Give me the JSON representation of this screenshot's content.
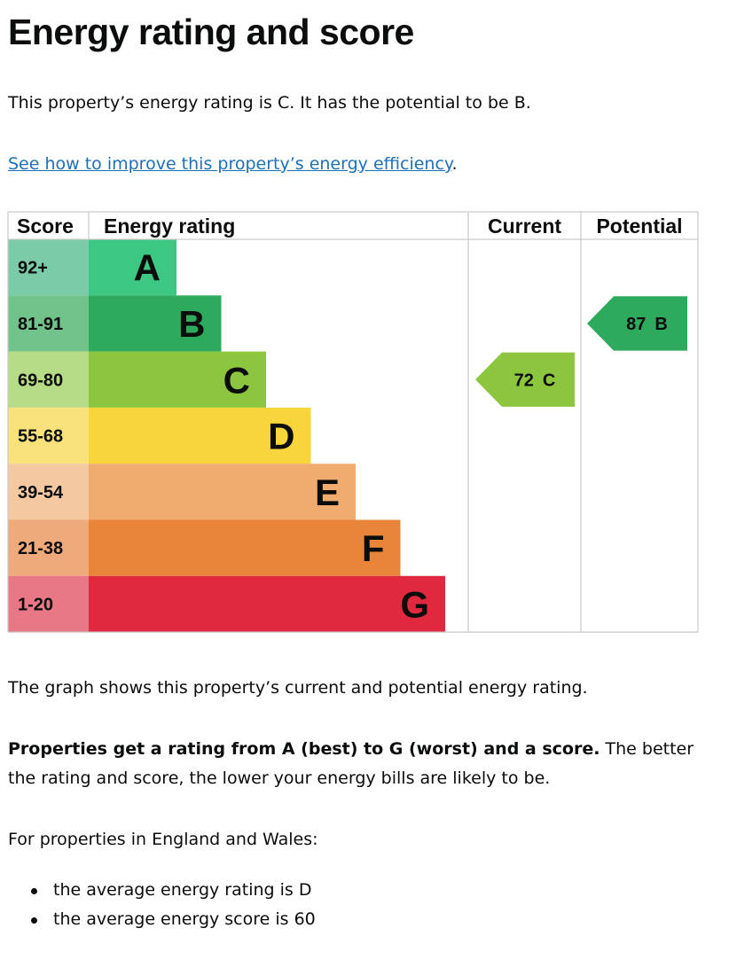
{
  "heading": "Energy rating and score",
  "intro": "This property’s energy rating is C. It has the potential to be B.",
  "link": "See how to improve this property’s energy efficiency",
  "link_end": ".",
  "table": {
    "headers": [
      "Score",
      "Energy rating",
      "Current",
      "Potential"
    ],
    "bands": [
      {
        "score": "92+",
        "letter": "A",
        "color": "#3cc882",
        "score_color": "#7bcaa8"
      },
      {
        "score": "81-91",
        "letter": "B",
        "color": "#2eaa5c",
        "score_color": "#72c28b"
      },
      {
        "score": "69-80",
        "letter": "C",
        "color": "#8cc63f",
        "score_color": "#b7dc87"
      },
      {
        "score": "55-68",
        "letter": "D",
        "color": "#f8d53a",
        "score_color": "#f9e27c"
      },
      {
        "score": "39-54",
        "letter": "E",
        "color": "#f0ac6e",
        "score_color": "#f4c8a0"
      },
      {
        "score": "21-38",
        "letter": "F",
        "color": "#e8853a",
        "score_color": "#eeaa7b"
      },
      {
        "score": "1-20",
        "letter": "G",
        "color": "#e0293e",
        "score_color": "#e87886"
      }
    ],
    "current": {
      "score": 72,
      "letter": "C"
    },
    "potential": {
      "score": 87,
      "letter": "B"
    }
  },
  "graph_note": "The graph shows this property’s current and potential energy rating.",
  "explanation": {
    "bold": "Properties get a rating from A (best) to G (worst) and a score.",
    "text": "The better the rating and score, the lower your energy bills are likely to be."
  },
  "region_intro": "For properties in England and Wales:",
  "bullets": [
    "the average energy rating is D",
    "the average energy score is 60"
  ]
}
